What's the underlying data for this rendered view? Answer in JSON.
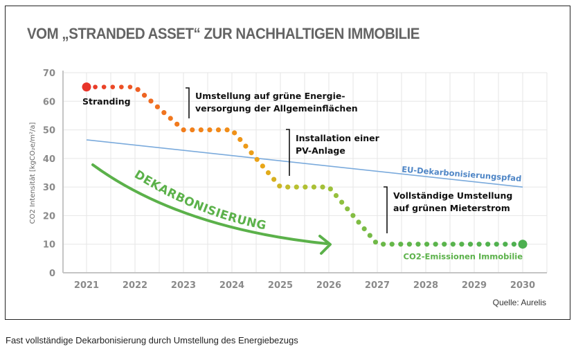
{
  "page": {
    "caption": "Fast vollständige Dekarbonisierung durch Umstellung des Energiebezugs"
  },
  "chart_data": {
    "type": "line",
    "title": "VOM „STRANDED ASSET“ ZUR NACHHALTIGEN IMMOBILIE",
    "source": "Quelle: Aurelis",
    "xlabel": "",
    "ylabel": "CO2 Intensität [kgCO₂e/m²/a]",
    "xlim": [
      2021,
      2030
    ],
    "ylim": [
      0,
      70
    ],
    "x_ticks": [
      "2021",
      "2022",
      "2023",
      "2024",
      "2025",
      "2026",
      "2027",
      "2028",
      "2029",
      "2030"
    ],
    "y_ticks": [
      "0",
      "10",
      "20",
      "30",
      "40",
      "50",
      "60",
      "70"
    ],
    "grid": true,
    "series": [
      {
        "name": "CO2-Emissionen Immobilie",
        "style": "dotted",
        "color_start": "#e8352a",
        "color_end": "#4cb050",
        "points": [
          {
            "x": 2021.0,
            "y": 65
          },
          {
            "x": 2022.0,
            "y": 65
          },
          {
            "x": 2023.0,
            "y": 50
          },
          {
            "x": 2024.0,
            "y": 50
          },
          {
            "x": 2025.0,
            "y": 30
          },
          {
            "x": 2026.0,
            "y": 30
          },
          {
            "x": 2027.0,
            "y": 10
          },
          {
            "x": 2030.0,
            "y": 10
          }
        ]
      },
      {
        "name": "EU-Dekarbonisierungspfad",
        "style": "solid",
        "color": "#7aaadc",
        "points": [
          {
            "x": 2021.0,
            "y": 46.5
          },
          {
            "x": 2030.0,
            "y": 30
          }
        ]
      }
    ],
    "annotations": [
      {
        "text": "Stranding",
        "x": 2021.0,
        "y": 65
      },
      {
        "text": "Umstellung auf grüne Energie-",
        "text2": "versorgung der Allgemeinflächen",
        "x": 2023.0,
        "y": 62
      },
      {
        "text": "Installation einer",
        "text2": "PV-Anlage",
        "x": 2025.0,
        "y": 50
      },
      {
        "text": "Vollständige Umstellung",
        "text2": "auf grünen Mieterstrom",
        "x": 2027.0,
        "y": 30
      },
      {
        "text": "DEKARBONISIERUNG",
        "type": "arrow",
        "color": "#5bb14a"
      }
    ],
    "colors": {
      "stranding": "#e8352a",
      "orange": "#f08a1c",
      "green": "#4cb050",
      "eu_path": "#7aaadc",
      "title": "#646464"
    }
  }
}
